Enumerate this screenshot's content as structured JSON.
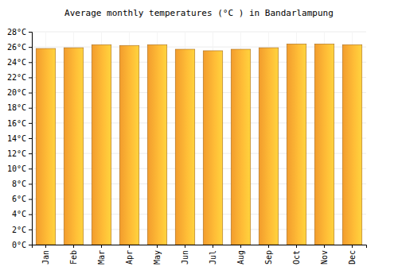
{
  "chart_data": {
    "type": "bar",
    "title": "Average monthly temperatures (°C ) in Bandarlampung",
    "categories": [
      "Jan",
      "Feb",
      "Mar",
      "Apr",
      "May",
      "Jun",
      "Jul",
      "Aug",
      "Sep",
      "Oct",
      "Nov",
      "Dec"
    ],
    "values": [
      25.8,
      25.9,
      26.3,
      26.2,
      26.3,
      25.7,
      25.5,
      25.7,
      25.9,
      26.4,
      26.4,
      26.3
    ],
    "color": "#ffa530",
    "ylim": [
      0,
      28
    ],
    "yticks": [
      {
        "value": 0,
        "label": "0°C"
      },
      {
        "value": 2,
        "label": "2°C"
      },
      {
        "value": 4,
        "label": "4°C"
      },
      {
        "value": 6,
        "label": "6°C"
      },
      {
        "value": 8,
        "label": "8°C"
      },
      {
        "value": 10,
        "label": "10°C"
      },
      {
        "value": 12,
        "label": "12°C"
      },
      {
        "value": 14,
        "label": "14°C"
      },
      {
        "value": 16,
        "label": "16°C"
      },
      {
        "value": 18,
        "label": "18°C"
      },
      {
        "value": 20,
        "label": "20°C"
      },
      {
        "value": 22,
        "label": "22°C"
      },
      {
        "value": 24,
        "label": "24°C"
      },
      {
        "value": 26,
        "label": "26°C"
      },
      {
        "value": 28,
        "label": "28°C"
      }
    ],
    "grid": true
  }
}
